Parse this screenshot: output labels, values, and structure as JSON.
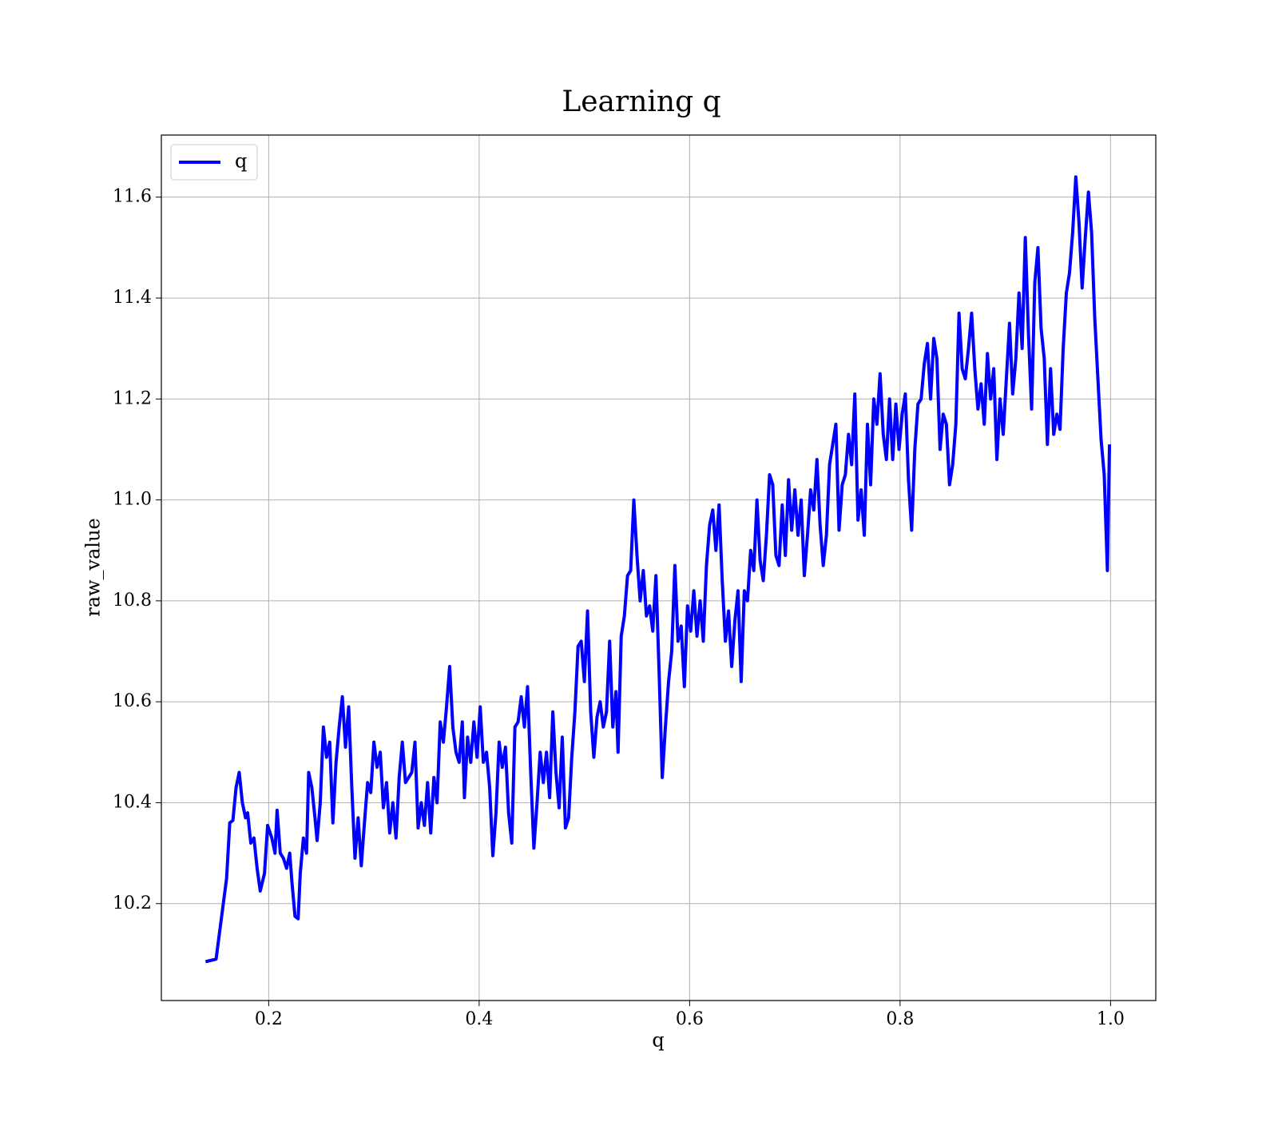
{
  "chart_data": {
    "type": "line",
    "title": "Learning q",
    "x_label": "q",
    "y_label": "raw_value",
    "legend": "upper left",
    "grid": true,
    "xlim": [
      0.098,
      1.043
    ],
    "ylim": [
      10.008,
      11.723
    ],
    "xticks": [
      0.2,
      0.4,
      0.6,
      0.8,
      {
        "value": 1,
        "label": "1.0"
      }
    ],
    "yticks": [
      10.2,
      10.4,
      10.6,
      10.8,
      {
        "value": 11,
        "label": "11.0"
      },
      11.2,
      11.4,
      11.6
    ],
    "x": [
      0.14,
      0.15,
      0.16,
      0.163,
      0.166,
      0.169,
      0.172,
      0.175,
      0.178,
      0.18,
      0.183,
      0.186,
      0.189,
      0.192,
      0.196,
      0.199,
      0.203,
      0.206,
      0.208,
      0.211,
      0.214,
      0.217,
      0.22,
      0.222,
      0.225,
      0.228,
      0.23,
      0.233,
      0.236,
      0.238,
      0.241,
      0.244,
      0.246,
      0.249,
      0.252,
      0.255,
      0.258,
      0.261,
      0.264,
      0.267,
      0.27,
      0.273,
      0.276,
      0.279,
      0.282,
      0.285,
      0.288,
      0.291,
      0.294,
      0.297,
      0.3,
      0.303,
      0.306,
      0.309,
      0.312,
      0.315,
      0.318,
      0.321,
      0.324,
      0.327,
      0.33,
      0.333,
      0.336,
      0.339,
      0.342,
      0.345,
      0.348,
      0.351,
      0.354,
      0.357,
      0.36,
      0.363,
      0.366,
      0.369,
      0.372,
      0.375,
      0.378,
      0.381,
      0.384,
      0.386,
      0.389,
      0.392,
      0.395,
      0.398,
      0.401,
      0.404,
      0.407,
      0.41,
      0.413,
      0.416,
      0.419,
      0.422,
      0.425,
      0.428,
      0.431,
      0.434,
      0.437,
      0.44,
      0.443,
      0.446,
      0.449,
      0.452,
      0.455,
      0.458,
      0.461,
      0.464,
      0.467,
      0.47,
      0.473,
      0.476,
      0.479,
      0.482,
      0.485,
      0.488,
      0.491,
      0.494,
      0.497,
      0.5,
      0.503,
      0.506,
      0.509,
      0.512,
      0.515,
      0.518,
      0.521,
      0.524,
      0.527,
      0.53,
      0.532,
      0.535,
      0.538,
      0.541,
      0.544,
      0.547,
      0.55,
      0.553,
      0.556,
      0.559,
      0.562,
      0.565,
      0.568,
      0.571,
      0.574,
      0.577,
      0.58,
      0.583,
      0.586,
      0.589,
      0.592,
      0.595,
      0.598,
      0.601,
      0.604,
      0.607,
      0.61,
      0.613,
      0.616,
      0.619,
      0.622,
      0.625,
      0.628,
      0.631,
      0.634,
      0.637,
      0.64,
      0.643,
      0.646,
      0.649,
      0.652,
      0.655,
      0.658,
      0.661,
      0.664,
      0.667,
      0.67,
      0.673,
      0.676,
      0.679,
      0.682,
      0.685,
      0.688,
      0.691,
      0.694,
      0.697,
      0.7,
      0.703,
      0.706,
      0.709,
      0.712,
      0.715,
      0.718,
      0.721,
      0.724,
      0.727,
      0.73,
      0.733,
      0.736,
      0.739,
      0.742,
      0.745,
      0.748,
      0.751,
      0.754,
      0.757,
      0.76,
      0.763,
      0.766,
      0.769,
      0.772,
      0.775,
      0.778,
      0.781,
      0.784,
      0.787,
      0.79,
      0.793,
      0.796,
      0.799,
      0.802,
      0.805,
      0.808,
      0.811,
      0.814,
      0.817,
      0.82,
      0.823,
      0.826,
      0.829,
      0.832,
      0.835,
      0.838,
      0.841,
      0.844,
      0.847,
      0.85,
      0.853,
      0.856,
      0.859,
      0.862,
      0.865,
      0.868,
      0.871,
      0.874,
      0.877,
      0.88,
      0.883,
      0.886,
      0.889,
      0.892,
      0.895,
      0.898,
      0.901,
      0.904,
      0.907,
      0.91,
      0.913,
      0.916,
      0.919,
      0.922,
      0.925,
      0.928,
      0.931,
      0.934,
      0.937,
      0.94,
      0.943,
      0.946,
      0.949,
      0.952,
      0.955,
      0.958,
      0.961,
      0.964,
      0.967,
      0.97,
      0.973,
      0.976,
      0.979,
      0.982,
      0.985,
      0.988,
      0.991,
      0.994,
      0.997,
      0.999
    ],
    "series": [
      {
        "name": "q",
        "color": "#0000ff",
        "values": [
          10.085,
          10.09,
          10.25,
          10.36,
          10.365,
          10.43,
          10.46,
          10.4,
          10.37,
          10.38,
          10.32,
          10.33,
          10.27,
          10.225,
          10.26,
          10.355,
          10.33,
          10.3,
          10.385,
          10.3,
          10.29,
          10.27,
          10.3,
          10.245,
          10.175,
          10.17,
          10.26,
          10.33,
          10.3,
          10.46,
          10.43,
          10.37,
          10.325,
          10.4,
          10.55,
          10.49,
          10.52,
          10.36,
          10.48,
          10.55,
          10.61,
          10.51,
          10.59,
          10.43,
          10.29,
          10.37,
          10.275,
          10.36,
          10.44,
          10.42,
          10.52,
          10.47,
          10.5,
          10.39,
          10.44,
          10.34,
          10.4,
          10.33,
          10.45,
          10.52,
          10.44,
          10.45,
          10.46,
          10.52,
          10.35,
          10.4,
          10.355,
          10.44,
          10.34,
          10.45,
          10.4,
          10.56,
          10.52,
          10.59,
          10.67,
          10.55,
          10.5,
          10.48,
          10.56,
          10.41,
          10.53,
          10.48,
          10.56,
          10.49,
          10.59,
          10.48,
          10.5,
          10.43,
          10.295,
          10.38,
          10.52,
          10.47,
          10.51,
          10.38,
          10.32,
          10.55,
          10.56,
          10.61,
          10.55,
          10.63,
          10.46,
          10.31,
          10.4,
          10.5,
          10.44,
          10.5,
          10.41,
          10.58,
          10.46,
          10.39,
          10.53,
          10.35,
          10.37,
          10.49,
          10.58,
          10.71,
          10.72,
          10.64,
          10.78,
          10.58,
          10.49,
          10.57,
          10.6,
          10.55,
          10.58,
          10.72,
          10.55,
          10.62,
          10.5,
          10.73,
          10.77,
          10.85,
          10.86,
          11.0,
          10.89,
          10.8,
          10.86,
          10.77,
          10.79,
          10.74,
          10.85,
          10.66,
          10.45,
          10.55,
          10.64,
          10.7,
          10.87,
          10.72,
          10.75,
          10.63,
          10.79,
          10.74,
          10.82,
          10.73,
          10.8,
          10.72,
          10.87,
          10.95,
          10.98,
          10.9,
          10.99,
          10.84,
          10.72,
          10.78,
          10.67,
          10.76,
          10.82,
          10.64,
          10.82,
          10.8,
          10.9,
          10.86,
          11.0,
          10.88,
          10.84,
          10.93,
          11.05,
          11.03,
          10.89,
          10.87,
          10.99,
          10.89,
          11.04,
          10.94,
          11.02,
          10.93,
          11.0,
          10.85,
          10.93,
          11.02,
          10.98,
          11.08,
          10.95,
          10.87,
          10.93,
          11.07,
          11.11,
          11.15,
          10.94,
          11.03,
          11.05,
          11.13,
          11.07,
          11.21,
          10.96,
          11.02,
          10.93,
          11.15,
          11.03,
          11.2,
          11.15,
          11.25,
          11.13,
          11.08,
          11.2,
          11.08,
          11.19,
          11.1,
          11.17,
          11.21,
          11.04,
          10.94,
          11.1,
          11.19,
          11.2,
          11.27,
          11.31,
          11.2,
          11.32,
          11.28,
          11.1,
          11.17,
          11.15,
          11.03,
          11.07,
          11.15,
          11.37,
          11.26,
          11.24,
          11.3,
          11.37,
          11.26,
          11.18,
          11.23,
          11.15,
          11.29,
          11.2,
          11.26,
          11.08,
          11.2,
          11.13,
          11.24,
          11.35,
          11.21,
          11.28,
          11.41,
          11.3,
          11.52,
          11.33,
          11.18,
          11.43,
          11.5,
          11.34,
          11.28,
          11.11,
          11.26,
          11.13,
          11.17,
          11.14,
          11.3,
          11.41,
          11.45,
          11.53,
          11.64,
          11.55,
          11.42,
          11.52,
          11.61,
          11.53,
          11.36,
          11.24,
          11.12,
          11.05,
          10.86,
          11.11
        ]
      }
    ]
  }
}
